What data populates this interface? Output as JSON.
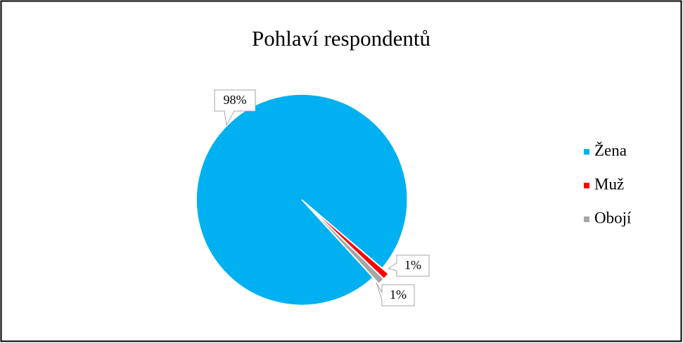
{
  "chart_data": {
    "type": "pie",
    "title": "Pohlaví respondentů",
    "categories": [
      "Žena",
      "Muž",
      "Obojí"
    ],
    "values": [
      98,
      1,
      1
    ],
    "value_labels": [
      "98%",
      "1%",
      "1%"
    ],
    "colors": [
      "#00b0f0",
      "#ff0000",
      "#a5a5a5"
    ],
    "legend": "right"
  }
}
